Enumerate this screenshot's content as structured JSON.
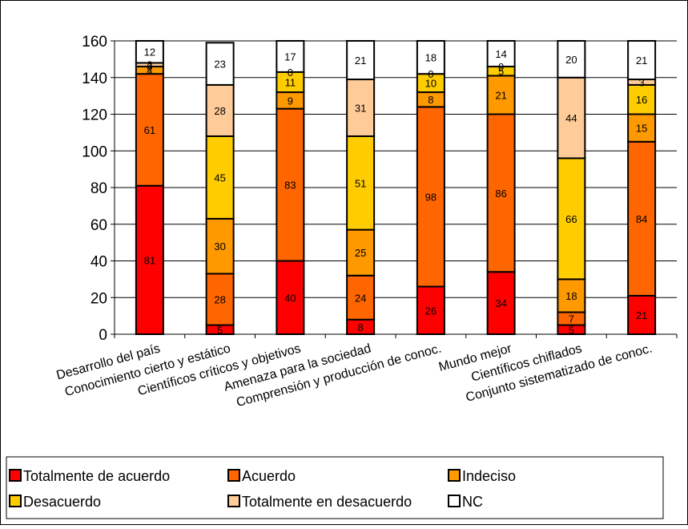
{
  "chart_data": {
    "type": "bar",
    "stacked": true,
    "categories": [
      "Desarrollo del país",
      "Conocimiento cierto y estático",
      "Científicos críticos y objetivos",
      "Amenaza para la sociedad",
      "Comprensión y producción de conoc.",
      "Mundo mejor",
      "Científicos chiflados",
      "Conjunto sistematizado de conoc."
    ],
    "series": [
      {
        "name": "Totalmente de acuerdo",
        "color": "#ff0000",
        "values": [
          81,
          5,
          40,
          8,
          26,
          34,
          5,
          21
        ]
      },
      {
        "name": "Acuerdo",
        "color": "#ff6600",
        "values": [
          61,
          28,
          83,
          24,
          98,
          86,
          7,
          84
        ]
      },
      {
        "name": "Indeciso",
        "color": "#ff9900",
        "values": [
          4,
          30,
          9,
          25,
          8,
          21,
          18,
          15
        ]
      },
      {
        "name": "Desacuerdo",
        "color": "#ffcc00",
        "values": [
          0,
          45,
          11,
          51,
          10,
          5,
          66,
          16
        ]
      },
      {
        "name": "Totalmente en desacuerdo",
        "color": "#ffcc99",
        "values": [
          2,
          28,
          0,
          31,
          0,
          0,
          44,
          3
        ]
      },
      {
        "name": "NC",
        "color": "#ffffff",
        "values": [
          12,
          23,
          17,
          21,
          18,
          14,
          20,
          21
        ]
      }
    ],
    "ylim": [
      0,
      160
    ],
    "yticks": [
      0,
      20,
      40,
      60,
      80,
      100,
      120,
      140,
      160
    ],
    "grid": true,
    "legend_position": "bottom",
    "title": "",
    "xlabel": "",
    "ylabel": ""
  }
}
